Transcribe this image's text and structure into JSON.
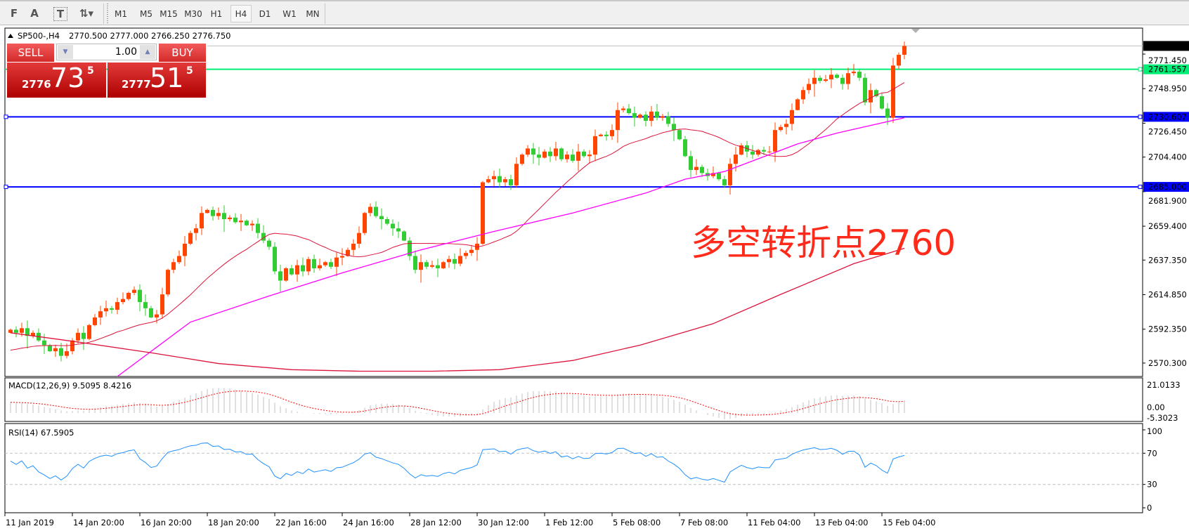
{
  "toolbar": {
    "icons": [
      "grid-f-icon",
      "text-a-icon",
      "text-label-icon",
      "arrows-dropdown-icon"
    ],
    "icon_glyphs": [
      "F",
      "A",
      "T",
      "⇅▾"
    ],
    "timeframes": [
      "M1",
      "M5",
      "M15",
      "M30",
      "H1",
      "H4",
      "D1",
      "W1",
      "MN"
    ],
    "active_timeframe": "H4"
  },
  "chart_header": {
    "symbol": "SP500-,H4",
    "ohlc": "2770.500 2777.000 2766.250 2776.750"
  },
  "trade_panel": {
    "sell_label": "SELL",
    "buy_label": "BUY",
    "volume": "1.00",
    "sell_price": {
      "prefix": "2776",
      "big": "73",
      "sup": "5"
    },
    "buy_price": {
      "prefix": "2777",
      "big": "51",
      "sup": "5"
    },
    "color": "#d42a2a"
  },
  "annotation": {
    "text": "多空转折点2760",
    "color": "#ff2a1a"
  },
  "chart_data": {
    "type": "candlestick",
    "bull_color": "#ff4500",
    "bear_color": "#32cd32",
    "first_open": 2590,
    "closes": [
      2592,
      2590,
      2593,
      2588,
      2590,
      2585,
      2582,
      2578,
      2580,
      2575,
      2578,
      2585,
      2590,
      2586,
      2595,
      2600,
      2604,
      2606,
      2605,
      2610,
      2612,
      2616,
      2618,
      2610,
      2606,
      2600,
      2602,
      2615,
      2631,
      2636,
      2640,
      2648,
      2655,
      2658,
      2668,
      2670,
      2666,
      2668,
      2664,
      2665,
      2662,
      2663,
      2660,
      2661,
      2655,
      2650,
      2646,
      2630,
      2624,
      2632,
      2628,
      2634,
      2630,
      2638,
      2632,
      2634,
      2636,
      2633,
      2639,
      2640,
      2644,
      2648,
      2655,
      2668,
      2672,
      2666,
      2664,
      2661,
      2658,
      2656,
      2650,
      2640,
      2631,
      2636,
      2633,
      2634,
      2632,
      2636,
      2638,
      2635,
      2640,
      2642,
      2644,
      2648,
      2688,
      2690,
      2692,
      2688,
      2690,
      2686,
      2700,
      2706,
      2710,
      2706,
      2704,
      2708,
      2705,
      2710,
      2703,
      2706,
      2702,
      2708,
      2705,
      2706,
      2718,
      2719,
      2718,
      2722,
      2735,
      2736,
      2733,
      2730,
      2732,
      2728,
      2734,
      2730,
      2731,
      2726,
      2722,
      2716,
      2705,
      2696,
      2698,
      2694,
      2692,
      2694,
      2690,
      2686,
      2700,
      2706,
      2712,
      2708,
      2706,
      2709,
      2708,
      2708,
      2722,
      2724,
      2726,
      2735,
      2742,
      2748,
      2752,
      2756,
      2754,
      2755,
      2758,
      2756,
      2752,
      2759,
      2760,
      2756,
      2740,
      2748,
      2744,
      2736,
      2730,
      2764,
      2771,
      2776.75
    ],
    "ma_fast_color": "#dc143c",
    "ma_medium": {
      "color": "#ff00ff",
      "points": [
        [
          19,
          2561
        ],
        [
          32,
          2597
        ],
        [
          46,
          2614
        ],
        [
          59,
          2629
        ],
        [
          73,
          2644
        ],
        [
          86,
          2656
        ],
        [
          100,
          2668
        ],
        [
          113,
          2681
        ],
        [
          120,
          2690
        ],
        [
          127,
          2695
        ],
        [
          140,
          2713
        ],
        [
          147,
          2720
        ],
        [
          159,
          2730
        ]
      ]
    },
    "ma_slow": {
      "color": "#dc143c",
      "points": [
        [
          0,
          2590
        ],
        [
          12,
          2584
        ],
        [
          25,
          2577
        ],
        [
          37,
          2570
        ],
        [
          50,
          2566
        ],
        [
          62,
          2565
        ],
        [
          75,
          2565
        ],
        [
          87,
          2566
        ],
        [
          100,
          2572
        ],
        [
          112,
          2582
        ],
        [
          125,
          2596
        ],
        [
          137,
          2615
        ],
        [
          150,
          2635
        ],
        [
          159,
          2645
        ]
      ]
    },
    "price_axis": [
      "2771.450",
      "2748.950",
      "2726.450",
      "2704.400",
      "2681.900",
      "2659.400",
      "2637.350",
      "2614.850",
      "2592.350",
      "2570.300"
    ],
    "ylim": [
      2561,
      2783
    ],
    "current_price": {
      "label": "2776.750",
      "value": 2776.75,
      "color": "#000000"
    },
    "hlines": [
      {
        "label": "2761.557",
        "value": 2761.557,
        "color": "#00ee76"
      },
      {
        "label": "2730.607",
        "value": 2730.607,
        "color": "#0000ff"
      },
      {
        "label": "2685.000",
        "value": 2685.0,
        "color": "#0000ff"
      }
    ],
    "time_axis": [
      "11 Jan 2019",
      "14 Jan 20:00",
      "16 Jan 20:00",
      "18 Jan 20:00",
      "22 Jan 16:00",
      "24 Jan 16:00",
      "28 Jan 12:00",
      "30 Jan 12:00",
      "1 Feb 12:00",
      "5 Feb 08:00",
      "7 Feb 08:00",
      "11 Feb 04:00",
      "13 Feb 04:00",
      "15 Feb 04:00"
    ],
    "macd": {
      "label": "MACD(12,26,9) 9.5095 8.4216",
      "axis": [
        "21.0133",
        "0.00",
        "-5.3023"
      ],
      "hist_color": "#c0c0c0",
      "signal_color": "#ff0000"
    },
    "rsi": {
      "label": "RSI(14) 67.5905",
      "axis": [
        "100",
        "70",
        "30",
        "0"
      ],
      "levels": [
        70,
        30
      ],
      "color": "#1e90ff"
    }
  }
}
